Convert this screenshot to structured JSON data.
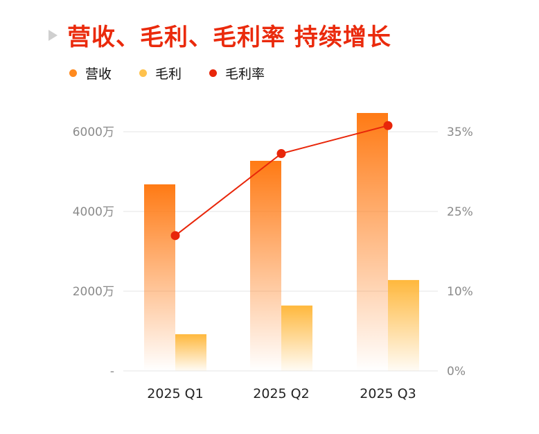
{
  "title": "营收、毛利、毛利率 持续增长",
  "colors": {
    "revenue": "#ff7a14",
    "profit": "#ffb83d",
    "margin": "#e8260a",
    "title": "#ea2a0c"
  },
  "chart_data": {
    "type": "bar",
    "title": "营收、毛利、毛利率 持续增长",
    "categories": [
      "2025 Q1",
      "2025 Q2",
      "2025 Q3"
    ],
    "series": [
      {
        "name": "营收",
        "type": "bar",
        "axis": "left",
        "unit": "万",
        "values": [
          4680,
          5270,
          6470
        ]
      },
      {
        "name": "毛利",
        "type": "bar",
        "axis": "left",
        "unit": "万",
        "values": [
          920,
          1640,
          2280
        ]
      },
      {
        "name": "毛利率",
        "type": "line",
        "axis": "right",
        "unit": "%",
        "values": [
          19.8,
          31.8,
          35.9
        ]
      }
    ],
    "left_axis": {
      "ylim": [
        0,
        6000
      ],
      "ticks": [
        0,
        2000,
        4000,
        6000
      ],
      "tick_labels": [
        "-",
        "2000万",
        "4000万",
        "6000万"
      ]
    },
    "right_axis": {
      "ylim": [
        0,
        35
      ],
      "tick_labels": [
        "0%",
        "10%",
        "25%",
        "35%"
      ]
    },
    "legend": [
      "营收",
      "毛利",
      "毛利率"
    ],
    "legend_position": "top-left",
    "grid": true
  }
}
